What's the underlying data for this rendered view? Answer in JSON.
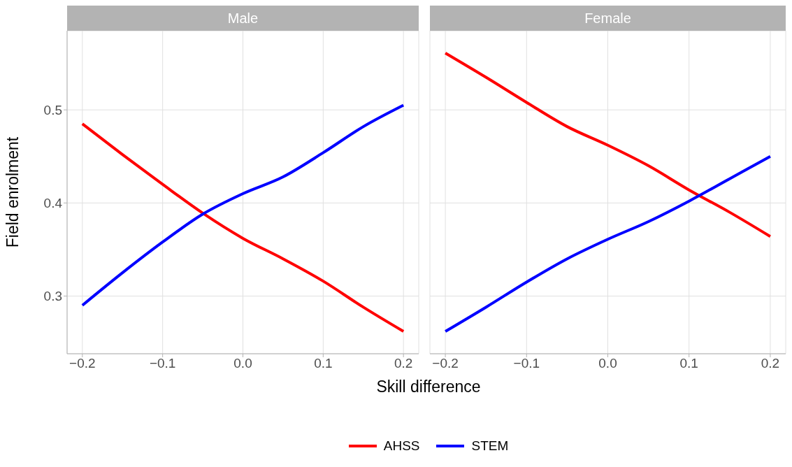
{
  "chart_data": [
    {
      "type": "line",
      "title": "Male",
      "xlabel": "Skill difference",
      "ylabel": "Field enrolment",
      "x": [
        -0.2,
        -0.15,
        -0.1,
        -0.05,
        0,
        0.05,
        0.1,
        0.15,
        0.2
      ],
      "series": [
        {
          "name": "AHSS",
          "color": "#ff0000",
          "values": [
            0.485,
            0.452,
            0.42,
            0.389,
            0.362,
            0.34,
            0.316,
            0.288,
            0.262
          ]
        },
        {
          "name": "STEM",
          "color": "#0000ff",
          "values": [
            0.29,
            0.325,
            0.358,
            0.388,
            0.41,
            0.428,
            0.454,
            0.482,
            0.505
          ]
        }
      ],
      "xlim": [
        -0.219,
        0.219
      ],
      "ylim": [
        0.238,
        0.585
      ],
      "xticks": [
        {
          "value": -0.2,
          "label": "−0.2"
        },
        {
          "value": -0.1,
          "label": "−0.1"
        },
        {
          "value": 0,
          "label": "0.0"
        },
        {
          "value": 0.1,
          "label": "0.1"
        },
        {
          "value": 0.2,
          "label": "0.2"
        }
      ],
      "yticks": [
        {
          "value": 0.3,
          "label": "0.3"
        },
        {
          "value": 0.4,
          "label": "0.4"
        },
        {
          "value": 0.5,
          "label": "0.5"
        }
      ],
      "grid": true,
      "legend": "bottom",
      "line_style": "solid",
      "marker": "none"
    },
    {
      "type": "line",
      "title": "Female",
      "x": [
        -0.2,
        -0.15,
        -0.1,
        -0.05,
        0,
        0.05,
        0.1,
        0.15,
        0.2
      ],
      "series": [
        {
          "color": "#ff0000",
          "values": [
            0.561,
            0.535,
            0.508,
            0.482,
            0.462,
            0.44,
            0.414,
            0.39,
            0.364
          ]
        },
        {
          "color": "#0000ff",
          "values": [
            0.262,
            0.288,
            0.315,
            0.34,
            0.361,
            0.38,
            0.402,
            0.426,
            0.45
          ]
        }
      ],
      "xlim": [
        -0.219,
        0.219
      ],
      "ylim": [
        0.238,
        0.585
      ],
      "xticks": [
        {
          "value": -0.2,
          "label": "−0.2"
        },
        {
          "value": -0.1,
          "label": "−0.1"
        },
        {
          "value": 0,
          "label": "0.0"
        },
        {
          "value": 0.1,
          "label": "0.1"
        },
        {
          "value": 0.2,
          "label": "0.2"
        }
      ],
      "yticks": [
        0.3,
        0.4,
        0.5
      ],
      "grid": true,
      "tick_labels": "x",
      "line_style": "solid",
      "marker": "none"
    }
  ]
}
